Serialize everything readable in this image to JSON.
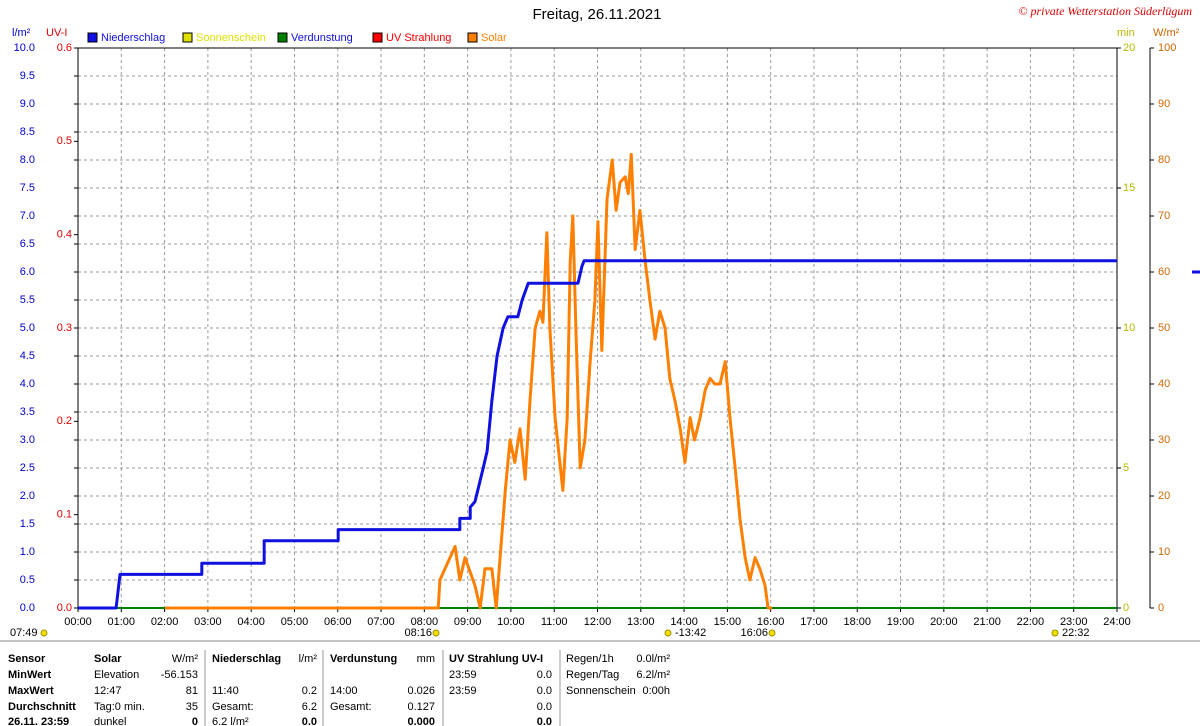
{
  "chart_data": {
    "type": "line",
    "title": "Freitag, 26.11.2021",
    "credit": "© private Wetterstation Süderlügum",
    "xlim": [
      0,
      24
    ],
    "xticks": [
      {
        "value": 0,
        "label": "00:00"
      },
      {
        "value": 1,
        "label": "01:00"
      },
      {
        "value": 2,
        "label": "02:00"
      },
      {
        "value": 3,
        "label": "03:00"
      },
      {
        "value": 4,
        "label": "04:00"
      },
      {
        "value": 5,
        "label": "05:00"
      },
      {
        "value": 6,
        "label": "06:00"
      },
      {
        "value": 7,
        "label": "07:00"
      },
      {
        "value": 8,
        "label": "08:00"
      },
      {
        "value": 9,
        "label": "09:00"
      },
      {
        "value": 10,
        "label": "10:00"
      },
      {
        "value": 11,
        "label": "11:00"
      },
      {
        "value": 12,
        "label": "12:00"
      },
      {
        "value": 13,
        "label": "13:00"
      },
      {
        "value": 14,
        "label": "14:00"
      },
      {
        "value": 15,
        "label": "15:00"
      },
      {
        "value": 16,
        "label": "16:00"
      },
      {
        "value": 17,
        "label": "17:00"
      },
      {
        "value": 18,
        "label": "18:00"
      },
      {
        "value": 19,
        "label": "19:00"
      },
      {
        "value": 20,
        "label": "20:00"
      },
      {
        "value": 21,
        "label": "21:00"
      },
      {
        "value": 22,
        "label": "22:00"
      },
      {
        "value": 23,
        "label": "23:00"
      },
      {
        "value": 24,
        "label": "24:00"
      }
    ],
    "grid": true,
    "axes": [
      {
        "label": "l/m²",
        "color": "#0000cc",
        "lim": [
          0,
          10
        ],
        "ticks": [
          {
            "value": 0,
            "label": "0.0"
          },
          {
            "value": 0.5,
            "label": "0.5"
          },
          {
            "value": 1,
            "label": "1.0"
          },
          {
            "value": 1.5,
            "label": "1.5"
          },
          {
            "value": 2,
            "label": "2.0"
          },
          {
            "value": 2.5,
            "label": "2.5"
          },
          {
            "value": 3,
            "label": "3.0"
          },
          {
            "value": 3.5,
            "label": "3.5"
          },
          {
            "value": 4,
            "label": "4.0"
          },
          {
            "value": 4.5,
            "label": "4.5"
          },
          {
            "value": 5,
            "label": "5.0"
          },
          {
            "value": 5.5,
            "label": "5.5"
          },
          {
            "value": 6,
            "label": "6.0"
          },
          {
            "value": 6.5,
            "label": "6.5"
          },
          {
            "value": 7,
            "label": "7.0"
          },
          {
            "value": 7.5,
            "label": "7.5"
          },
          {
            "value": 8,
            "label": "8.0"
          },
          {
            "value": 8.5,
            "label": "8.5"
          },
          {
            "value": 9,
            "label": "9.0"
          },
          {
            "value": 9.5,
            "label": "9.5"
          },
          {
            "value": 10,
            "label": "10.0"
          }
        ]
      },
      {
        "label": "UV-I",
        "color": "#dd0000",
        "lim": [
          0,
          0.6
        ],
        "ticks": [
          {
            "value": 0,
            "label": "0.0"
          },
          0.1,
          0.2,
          0.3,
          0.4,
          0.5,
          0.6
        ]
      },
      {
        "label": "min",
        "color": "#b8b800",
        "lim": [
          0,
          20
        ],
        "ticks": [
          0,
          5,
          10,
          15,
          20
        ]
      },
      {
        "label": "W/m²",
        "color": "#cc6600",
        "lim": [
          0,
          100
        ],
        "ticks": [
          0,
          10,
          20,
          30,
          40,
          50,
          60,
          70,
          80,
          90,
          100
        ]
      }
    ],
    "series": [
      {
        "name": "Niederschlag",
        "color": "#1010e0",
        "axis": 0,
        "x": [
          0,
          0.88,
          0.97,
          2.86,
          2.86,
          4.3,
          4.3,
          6.01,
          6.01,
          8.82,
          8.82,
          9.06,
          9.06,
          9.17,
          9.36,
          9.45,
          9.56,
          9.68,
          9.82,
          9.93,
          10.16,
          10.26,
          10.4,
          11.55,
          11.64,
          11.69,
          24
        ],
        "values": [
          0,
          0,
          0.6,
          0.6,
          0.8,
          0.8,
          1.2,
          1.2,
          1.4,
          1.4,
          1.6,
          1.6,
          1.8,
          1.9,
          2.5,
          2.8,
          3.7,
          4.5,
          5.0,
          5.2,
          5.2,
          5.5,
          5.8,
          5.8,
          6.1,
          6.2,
          6.2
        ]
      },
      {
        "name": "Sonnenschein",
        "color": "#e0e000",
        "axis": 2
      },
      {
        "name": "Verdunstung",
        "color": "#008000",
        "axis": 0,
        "x": [
          0,
          24
        ],
        "values": [
          0,
          0
        ]
      },
      {
        "name": "UV Strahlung",
        "color": "#ff0000",
        "axis": 1
      },
      {
        "name": "Solar",
        "color": "#ff8000",
        "axis": 3,
        "x": [
          2.01,
          8.32,
          8.36,
          8.71,
          8.82,
          8.94,
          9.17,
          9.29,
          9.4,
          9.56,
          9.66,
          9.75,
          9.87,
          9.98,
          10.09,
          10.21,
          10.33,
          10.44,
          10.56,
          10.67,
          10.74,
          10.83,
          10.9,
          11.02,
          11.13,
          11.2,
          11.3,
          11.37,
          11.43,
          11.5,
          11.6,
          11.71,
          11.83,
          11.94,
          12.01,
          12.1,
          12.22,
          12.34,
          12.43,
          12.52,
          12.64,
          12.71,
          12.78,
          12.87,
          12.98,
          13.1,
          13.21,
          13.33,
          13.44,
          13.56,
          13.67,
          13.79,
          13.91,
          14.02,
          14.14,
          14.24,
          14.37,
          14.49,
          14.6,
          14.71,
          14.83,
          14.95,
          15.06,
          15.18,
          15.29,
          15.41,
          15.52,
          15.64,
          15.75,
          15.87,
          15.94,
          16.03
        ],
        "values": [
          0,
          0,
          5,
          11,
          5,
          9,
          4,
          0,
          7,
          7,
          0,
          9,
          21,
          30,
          26,
          32,
          23,
          37,
          50,
          53,
          51,
          67,
          50,
          34,
          26,
          21,
          34,
          62,
          70,
          50,
          25,
          30,
          44,
          55,
          69,
          46,
          73,
          80,
          71,
          76,
          77,
          74,
          81,
          64,
          71,
          62,
          55,
          48,
          53,
          50,
          41,
          37,
          32,
          26,
          34,
          30,
          34,
          39,
          41,
          40,
          40,
          44,
          34,
          25,
          16,
          9,
          5,
          9,
          7,
          4,
          0,
          0
        ]
      }
    ],
    "annotations": [
      "07:49",
      "08:16",
      "-13:42",
      "16:06",
      "22:32"
    ]
  },
  "table": {
    "rows": [
      [
        "Sensor",
        "Solar",
        "W/m²",
        "Niederschlag",
        "l/m²",
        "Verdunstung",
        "mm",
        "UV Strahlung UV-I",
        null,
        "Regen/1h",
        "0.0l/m²"
      ],
      [
        "MinWert",
        "Elevation",
        "-56.153",
        null,
        null,
        null,
        null,
        "23:59",
        "0.0",
        "Regen/Tag",
        "6.2l/m²"
      ],
      [
        "MaxWert",
        "12:47",
        "81",
        "11:40",
        "0.2",
        "14:00",
        "0.026",
        "23:59",
        "0.0",
        "Sonnenschein",
        "0:00h"
      ],
      [
        "Durchschnitt",
        "Tag:0 min.",
        "35",
        "Gesamt:",
        "6.2",
        "Gesamt:",
        "0.127",
        null,
        "0.0",
        null,
        null
      ],
      [
        "26.11. 23:59",
        "dunkel",
        "0",
        "6.2 l/m²",
        "0.0",
        null,
        "0.000",
        null,
        "0.0",
        null,
        null
      ]
    ]
  }
}
